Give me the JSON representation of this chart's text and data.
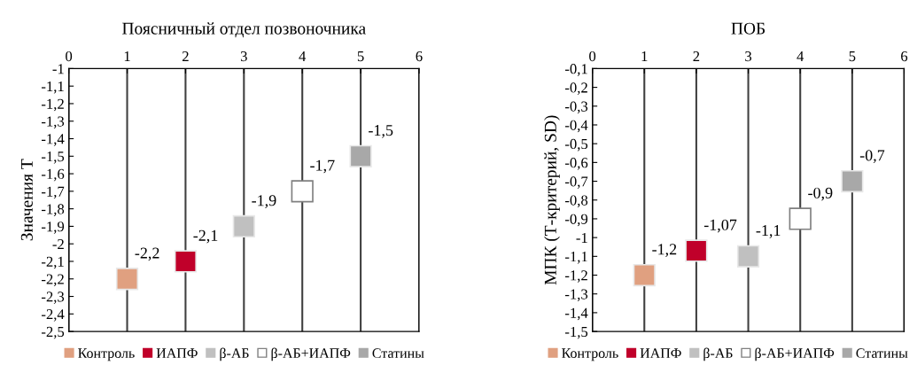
{
  "chart_data": [
    {
      "type": "scatter",
      "title": "Поясничный отдел позвоночника",
      "ylabel": "Значения Т",
      "marker": "square",
      "grid": "x",
      "legend": "bottom",
      "xlim": [
        0,
        6
      ],
      "xticks": [
        0,
        1,
        2,
        3,
        4,
        5,
        6
      ],
      "ylim": [
        -2.5,
        -1
      ],
      "yticks": [
        {
          "value": -2.5,
          "label": "-2,5"
        },
        {
          "value": -2.4,
          "label": "-2,4"
        },
        {
          "value": -2.3,
          "label": "-2,3"
        },
        {
          "value": -2.2,
          "label": "-2,2"
        },
        {
          "value": -2.1,
          "label": "-2,1"
        },
        -2,
        {
          "value": -1.9,
          "label": "-1,9"
        },
        {
          "value": -1.8,
          "label": "-1,8"
        },
        {
          "value": -1.7,
          "label": "-1,7"
        },
        {
          "value": -1.6,
          "label": "-1,6"
        },
        {
          "value": -1.5,
          "label": "-1,5"
        },
        {
          "value": -1.4,
          "label": "-1,4"
        },
        {
          "value": -1.3,
          "label": "-1,3"
        },
        {
          "value": -1.2,
          "label": "-1,2"
        },
        {
          "value": -1.1,
          "label": "-1,1"
        },
        -1
      ],
      "series": [
        {
          "name": "Контроль",
          "color": "#e0a080",
          "x": [
            1
          ],
          "values": [
            -2.2
          ],
          "value_labels": [
            "-2,2"
          ]
        },
        {
          "name": "ИАПФ",
          "color": "#c0002a",
          "x": [
            2
          ],
          "values": [
            -2.1
          ],
          "value_labels": [
            "-2,1"
          ]
        },
        {
          "name": "β-АБ",
          "color": "#c0c0c0",
          "x": [
            3
          ],
          "values": [
            -1.9
          ],
          "value_labels": [
            "-1,9"
          ]
        },
        {
          "name": "β-АБ+ИАПФ",
          "color": "#ffffff",
          "x": [
            4
          ],
          "values": [
            -1.7
          ],
          "value_labels": [
            "-1,7"
          ]
        },
        {
          "name": "Статины",
          "color": "#a8a8a8",
          "x": [
            5
          ],
          "values": [
            -1.5
          ],
          "value_labels": [
            "-1,5"
          ]
        }
      ]
    },
    {
      "type": "scatter",
      "title": "ПОБ",
      "ylabel": "МПК (Т-критерий, SD)",
      "marker": "square",
      "grid": "x",
      "legend": "bottom",
      "xlim": [
        0,
        6
      ],
      "xticks": [
        0,
        1,
        2,
        3,
        4,
        5,
        6
      ],
      "ylim": [
        -1.5,
        -0.1
      ],
      "yticks": [
        {
          "value": -1.5,
          "label": "-1,5"
        },
        {
          "value": -1.4,
          "label": "-1,4"
        },
        {
          "value": -1.3,
          "label": "-1,3"
        },
        {
          "value": -1.2,
          "label": "-1,2"
        },
        {
          "value": -1.1,
          "label": "-1,1"
        },
        -1,
        {
          "value": -0.9,
          "label": "-0,9"
        },
        {
          "value": -0.8,
          "label": "-0,8"
        },
        {
          "value": -0.7,
          "label": "-0,7"
        },
        {
          "value": -0.6,
          "label": "-0,6"
        },
        {
          "value": -0.5,
          "label": "-0,5"
        },
        {
          "value": -0.4,
          "label": "-0,4"
        },
        {
          "value": -0.3,
          "label": "-0,3"
        },
        {
          "value": -0.2,
          "label": "-0,2"
        },
        {
          "value": -0.1,
          "label": "-0,1"
        }
      ],
      "series": [
        {
          "name": "Контроль",
          "color": "#e0a080",
          "x": [
            1
          ],
          "values": [
            -1.2
          ],
          "value_labels": [
            "-1,2"
          ]
        },
        {
          "name": "ИАПФ",
          "color": "#c0002a",
          "x": [
            2
          ],
          "values": [
            -1.07
          ],
          "value_labels": [
            "-1,07"
          ]
        },
        {
          "name": "β-АБ",
          "color": "#c0c0c0",
          "x": [
            3
          ],
          "values": [
            -1.1
          ],
          "value_labels": [
            "-1,1"
          ]
        },
        {
          "name": "β-АБ+ИАПФ",
          "color": "#ffffff",
          "x": [
            4
          ],
          "values": [
            -0.9
          ],
          "value_labels": [
            "-0,9"
          ]
        },
        {
          "name": "Статины",
          "color": "#a8a8a8",
          "x": [
            5
          ],
          "values": [
            -0.7
          ],
          "value_labels": [
            "-0,7"
          ]
        }
      ]
    }
  ]
}
